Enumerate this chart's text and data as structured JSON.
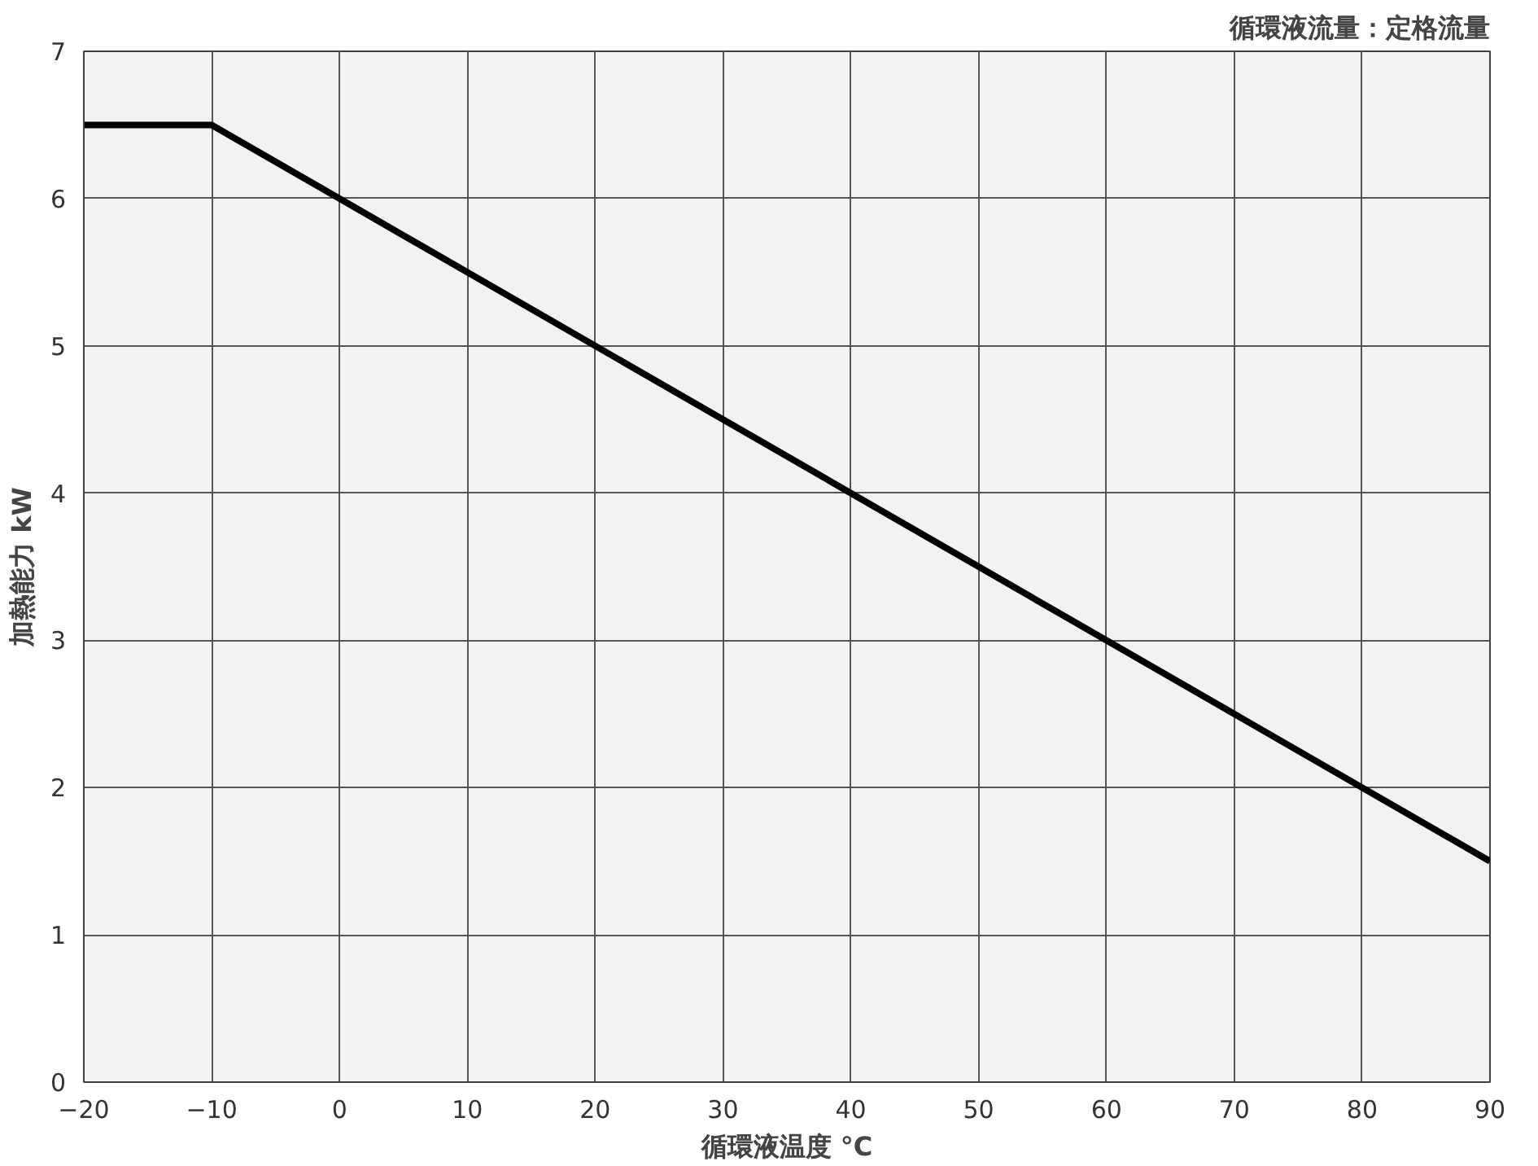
{
  "chart_data": {
    "type": "line",
    "subtitle": "循環液流量：定格流量",
    "xlabel": "循環液温度 °C",
    "ylabel": "加熱能力 kW",
    "x": [
      -20,
      -10,
      90
    ],
    "series": [
      {
        "color": "#000000",
        "values": [
          6.5,
          6.5,
          1.5
        ]
      }
    ],
    "xlim": [
      -20,
      90
    ],
    "xticks": [
      -20,
      -10,
      0,
      10,
      20,
      30,
      40,
      50,
      60,
      70,
      80,
      90
    ],
    "ylim": [
      0,
      7
    ],
    "yticks": [
      0,
      1,
      2,
      3,
      4,
      5,
      6,
      7
    ],
    "grid": true,
    "marker": "none",
    "line_style": "solid"
  }
}
